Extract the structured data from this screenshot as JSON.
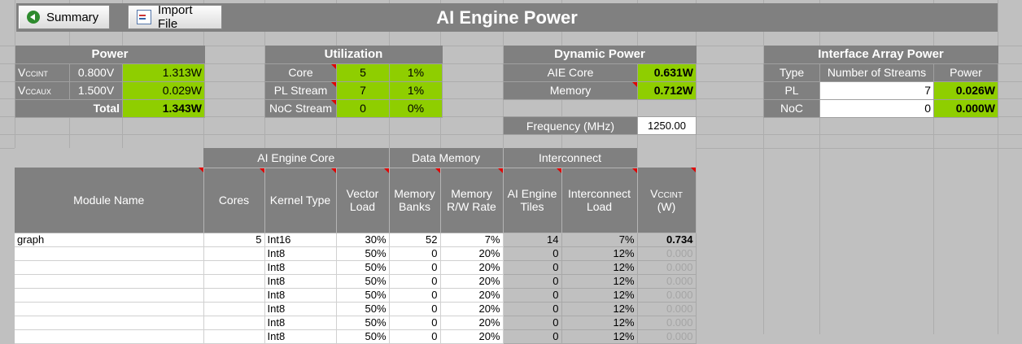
{
  "toolbar": {
    "summary_label": "Summary",
    "import_label": "Import File"
  },
  "page_title": "AI Engine Power",
  "power": {
    "header": "Power",
    "rows": [
      {
        "rail_main": "V",
        "rail_sub": "CCINT",
        "voltage": "0.800V",
        "value": "1.313W"
      },
      {
        "rail_main": "V",
        "rail_sub": "CCAUX",
        "voltage": "1.500V",
        "value": "0.029W"
      }
    ],
    "total_label": "Total",
    "total_value": "1.343W"
  },
  "utilization": {
    "header": "Utilization",
    "rows": [
      {
        "label": "Core",
        "count": "5",
        "pct": "1%"
      },
      {
        "label": "PL Stream",
        "count": "7",
        "pct": "1%"
      },
      {
        "label": "NoC Stream",
        "count": "0",
        "pct": "0%"
      }
    ]
  },
  "dynamic_power": {
    "header": "Dynamic Power",
    "rows": [
      {
        "label": "AIE Core",
        "value": "0.631W"
      },
      {
        "label": "Memory",
        "value": "0.712W"
      }
    ],
    "frequency_label": "Frequency (MHz)",
    "frequency_value": "1250.00"
  },
  "interface": {
    "header": "Interface Array Power",
    "col_type": "Type",
    "col_streams": "Number of Streams",
    "col_power": "Power",
    "rows": [
      {
        "type": "PL",
        "streams": "7",
        "power": "0.026W"
      },
      {
        "type": "NoC",
        "streams": "0",
        "power": "0.000W"
      }
    ]
  },
  "main_table": {
    "groups": {
      "core": "AI Engine Core",
      "memory": "Data Memory",
      "interconnect": "Interconnect"
    },
    "columns": {
      "module": "Module Name",
      "cores": "Cores",
      "kernel": "Kernel Type",
      "vector1": "Vector",
      "vector2": "Load",
      "banks1": "Memory",
      "banks2": "Banks",
      "rw1": "Memory",
      "rw2": "R/W Rate",
      "tiles1": "AI Engine",
      "tiles2": "Tiles",
      "icl1": "Interconnect",
      "icl2": "Load",
      "v_main": "V",
      "v_sub": "CCINT",
      "v_unit": "(W)"
    },
    "rows": [
      {
        "module": "graph",
        "cores": "5",
        "kernel": "Int16",
        "vector": "30%",
        "banks": "52",
        "rw": "7%",
        "tiles": "14",
        "icl": "7%",
        "power": "0.734"
      },
      {
        "module": "",
        "cores": "",
        "kernel": "Int8",
        "vector": "50%",
        "banks": "0",
        "rw": "20%",
        "tiles": "0",
        "icl": "12%",
        "power": "0.000"
      },
      {
        "module": "",
        "cores": "",
        "kernel": "Int8",
        "vector": "50%",
        "banks": "0",
        "rw": "20%",
        "tiles": "0",
        "icl": "12%",
        "power": "0.000"
      },
      {
        "module": "",
        "cores": "",
        "kernel": "Int8",
        "vector": "50%",
        "banks": "0",
        "rw": "20%",
        "tiles": "0",
        "icl": "12%",
        "power": "0.000"
      },
      {
        "module": "",
        "cores": "",
        "kernel": "Int8",
        "vector": "50%",
        "banks": "0",
        "rw": "20%",
        "tiles": "0",
        "icl": "12%",
        "power": "0.000"
      },
      {
        "module": "",
        "cores": "",
        "kernel": "Int8",
        "vector": "50%",
        "banks": "0",
        "rw": "20%",
        "tiles": "0",
        "icl": "12%",
        "power": "0.000"
      },
      {
        "module": "",
        "cores": "",
        "kernel": "Int8",
        "vector": "50%",
        "banks": "0",
        "rw": "20%",
        "tiles": "0",
        "icl": "12%",
        "power": "0.000"
      },
      {
        "module": "",
        "cores": "",
        "kernel": "Int8",
        "vector": "50%",
        "banks": "0",
        "rw": "20%",
        "tiles": "0",
        "icl": "12%",
        "power": "0.000"
      }
    ]
  }
}
